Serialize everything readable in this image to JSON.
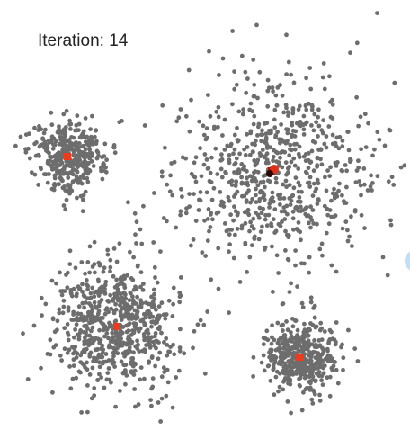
{
  "status": {
    "label": "Iteration: 14"
  }
}
